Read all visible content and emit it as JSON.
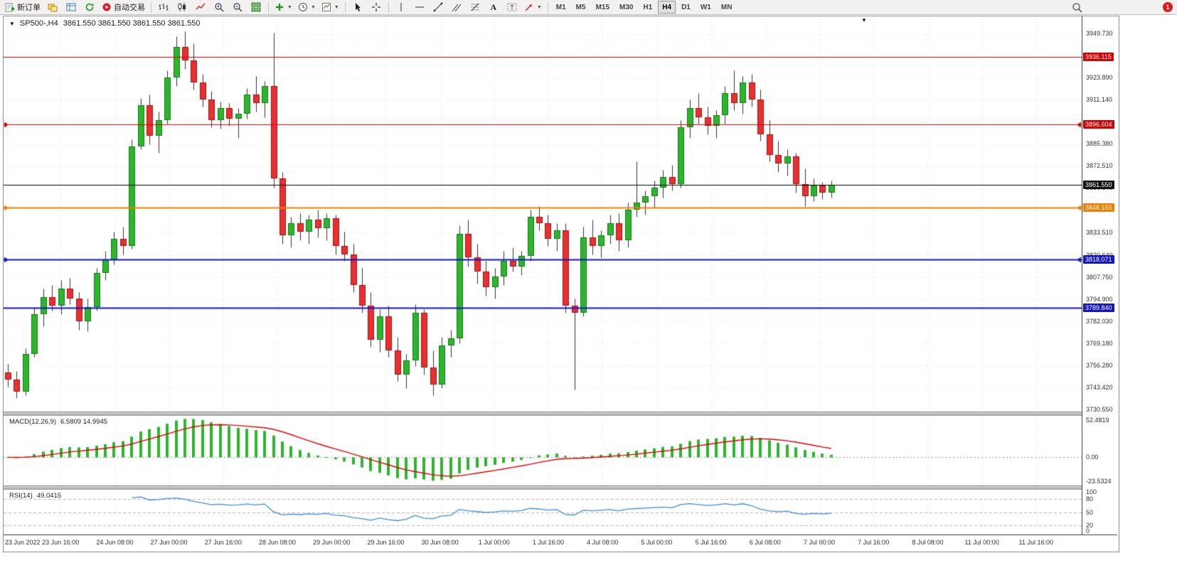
{
  "toolbar": {
    "new_order_label": "新订单",
    "auto_trading_label": "自动交易",
    "timeframes": [
      "M1",
      "M5",
      "M15",
      "M30",
      "H1",
      "H4",
      "D1",
      "W1",
      "MN"
    ],
    "active_timeframe": "H4",
    "notification_count": "1"
  },
  "chart_header": {
    "symbol_period": "SP500-,H4",
    "ohlc": "3861.550 3861.550 3861.550 3861.550"
  },
  "indicators": {
    "macd": {
      "name": "MACD(12,26,9)",
      "values": "6.5809 14.9945",
      "axis": [
        "52.4819",
        "0.00",
        "-23.5324"
      ]
    },
    "rsi": {
      "name": "RSI(14)",
      "value": "49.0415",
      "axis": [
        "100",
        "80",
        "50",
        "20",
        "0"
      ],
      "levels": [
        80,
        50,
        20
      ]
    }
  },
  "price_axis": {
    "ticks": [
      3949.73,
      3923.89,
      3911.14,
      3885.38,
      3872.51,
      3859.64,
      3833.51,
      3820.64,
      3807.75,
      3794.9,
      3782.03,
      3769.18,
      3756.28,
      3743.42,
      3730.55
    ],
    "badges": [
      {
        "label": "3936.115",
        "price": 3936.115,
        "color": "#D40000"
      },
      {
        "label": "3896.604",
        "price": 3896.604,
        "color": "#D40000"
      },
      {
        "label": "3861.550",
        "price": 3861.55,
        "color": "#111111"
      },
      {
        "label": "3848.156",
        "price": 3848.156,
        "color": "#F08000"
      },
      {
        "label": "3818.071",
        "price": 3818.071,
        "color": "#1414C8"
      },
      {
        "label": "3789.840",
        "price": 3789.84,
        "color": "#1414C8"
      }
    ]
  },
  "chart_data": {
    "type": "candlestick",
    "symbol": "SP500-",
    "timeframe": "H4",
    "ylim": [
      3729.3,
      3959.65
    ],
    "grid_base": 3730.55,
    "grid_step": 12.87,
    "current_price": 3861.55,
    "colors": {
      "up": "#2DB52D",
      "up_border": "#157815",
      "down": "#E83030",
      "down_border": "#A01515",
      "wick": "#303030",
      "macd_hist": "#2DB52D",
      "macd_signal": "#E00000",
      "rsi_line": "#3C8CD8"
    },
    "hlines": [
      {
        "price": 3936.115,
        "color": "#D40000",
        "width": 1,
        "ends": false
      },
      {
        "price": 3896.604,
        "color": "#D40000",
        "width": 1,
        "ends": true
      },
      {
        "price": 3848.156,
        "color": "#F08000",
        "width": 2,
        "ends": true
      },
      {
        "price": 3818.071,
        "color": "#1414C8",
        "width": 2,
        "ends": true
      },
      {
        "price": 3789.84,
        "color": "#1414C8",
        "width": 2,
        "ends": false
      }
    ],
    "time_labels": [
      "23 Jun 2022",
      "23 Jun 16:00",
      "24 Jun 08:00",
      "27 Jun 00:00",
      "27 Jun 16:00",
      "28 Jun 08:00",
      "29 Jun 00:00",
      "29 Jun 16:00",
      "30 Jun 08:00",
      "1 Jul 00:00",
      "1 Jul 16:00",
      "4 Jul 08:00",
      "5 Jul 00:00",
      "5 Jul 16:00",
      "6 Jul 08:00",
      "7 Jul 00:00",
      "7 Jul 16:00",
      "8 Jul 08:00",
      "11 Jul 00:00",
      "11 Jul 16:00"
    ],
    "candles": [
      [
        3752,
        3757,
        3744,
        3748
      ],
      [
        3748,
        3753,
        3737,
        3741
      ],
      [
        3741,
        3766,
        3739,
        3763
      ],
      [
        3763,
        3790,
        3761,
        3786
      ],
      [
        3786,
        3801,
        3779,
        3796
      ],
      [
        3796,
        3803,
        3788,
        3791
      ],
      [
        3791,
        3806,
        3786,
        3801
      ],
      [
        3801,
        3807,
        3792,
        3795
      ],
      [
        3795,
        3799,
        3777,
        3782
      ],
      [
        3782,
        3795,
        3776,
        3790
      ],
      [
        3790,
        3813,
        3788,
        3810
      ],
      [
        3810,
        3823,
        3806,
        3818
      ],
      [
        3818,
        3834,
        3815,
        3830
      ],
      [
        3830,
        3837,
        3821,
        3826
      ],
      [
        3826,
        3888,
        3824,
        3884
      ],
      [
        3884,
        3912,
        3882,
        3908
      ],
      [
        3908,
        3914,
        3885,
        3890
      ],
      [
        3890,
        3904,
        3880,
        3899
      ],
      [
        3899,
        3928,
        3897,
        3924
      ],
      [
        3924,
        3948,
        3919,
        3942
      ],
      [
        3942,
        3951,
        3929,
        3934
      ],
      [
        3934,
        3944,
        3917,
        3921
      ],
      [
        3921,
        3926,
        3907,
        3911
      ],
      [
        3911,
        3916,
        3895,
        3899
      ],
      [
        3899,
        3910,
        3894,
        3906
      ],
      [
        3906,
        3909,
        3896,
        3900
      ],
      [
        3900,
        3906,
        3889,
        3903
      ],
      [
        3903,
        3918,
        3900,
        3914
      ],
      [
        3914,
        3925,
        3904,
        3909
      ],
      [
        3909,
        3922,
        3901,
        3919
      ],
      [
        3919,
        3950,
        3860,
        3865
      ],
      [
        3865,
        3869,
        3827,
        3832
      ],
      [
        3832,
        3843,
        3825,
        3839
      ],
      [
        3839,
        3845,
        3829,
        3834
      ],
      [
        3834,
        3844,
        3827,
        3841
      ],
      [
        3841,
        3847,
        3831,
        3836
      ],
      [
        3836,
        3845,
        3829,
        3842
      ],
      [
        3842,
        3844,
        3821,
        3826
      ],
      [
        3826,
        3834,
        3817,
        3821
      ],
      [
        3821,
        3827,
        3799,
        3803
      ],
      [
        3803,
        3813,
        3787,
        3791
      ],
      [
        3791,
        3799,
        3767,
        3771
      ],
      [
        3771,
        3789,
        3764,
        3785
      ],
      [
        3785,
        3791,
        3761,
        3765
      ],
      [
        3765,
        3773,
        3747,
        3751
      ],
      [
        3751,
        3763,
        3743,
        3759
      ],
      [
        3759,
        3792,
        3756,
        3787
      ],
      [
        3787,
        3789,
        3751,
        3755
      ],
      [
        3755,
        3765,
        3739,
        3745
      ],
      [
        3745,
        3773,
        3743,
        3768
      ],
      [
        3768,
        3777,
        3761,
        3772
      ],
      [
        3772,
        3838,
        3769,
        3833
      ],
      [
        3833,
        3841,
        3814,
        3819
      ],
      [
        3819,
        3827,
        3804,
        3811
      ],
      [
        3811,
        3817,
        3797,
        3802
      ],
      [
        3802,
        3813,
        3795,
        3808
      ],
      [
        3808,
        3823,
        3803,
        3817
      ],
      [
        3817,
        3825,
        3811,
        3814
      ],
      [
        3814,
        3823,
        3809,
        3820
      ],
      [
        3820,
        3847,
        3817,
        3843
      ],
      [
        3843,
        3849,
        3835,
        3839
      ],
      [
        3839,
        3844,
        3826,
        3830
      ],
      [
        3830,
        3839,
        3823,
        3835
      ],
      [
        3835,
        3839,
        3787,
        3791
      ],
      [
        3791,
        3795,
        3742,
        3787
      ],
      [
        3787,
        3837,
        3785,
        3831
      ],
      [
        3831,
        3841,
        3821,
        3826
      ],
      [
        3826,
        3835,
        3819,
        3832
      ],
      [
        3832,
        3844,
        3827,
        3839
      ],
      [
        3839,
        3845,
        3823,
        3829
      ],
      [
        3829,
        3851,
        3825,
        3847
      ],
      [
        3847,
        3875,
        3843,
        3851
      ],
      [
        3851,
        3858,
        3844,
        3855
      ],
      [
        3855,
        3864,
        3848,
        3860
      ],
      [
        3860,
        3870,
        3854,
        3866
      ],
      [
        3866,
        3873,
        3858,
        3862
      ],
      [
        3862,
        3899,
        3860,
        3895
      ],
      [
        3895,
        3911,
        3889,
        3906
      ],
      [
        3906,
        3915,
        3897,
        3901
      ],
      [
        3901,
        3907,
        3891,
        3896
      ],
      [
        3896,
        3905,
        3889,
        3902
      ],
      [
        3902,
        3919,
        3897,
        3915
      ],
      [
        3915,
        3928,
        3905,
        3909
      ],
      [
        3909,
        3925,
        3903,
        3921
      ],
      [
        3921,
        3926,
        3907,
        3911
      ],
      [
        3911,
        3917,
        3887,
        3891
      ],
      [
        3891,
        3899,
        3875,
        3879
      ],
      [
        3879,
        3887,
        3869,
        3874
      ],
      [
        3874,
        3882,
        3867,
        3878
      ],
      [
        3878,
        3880,
        3857,
        3862
      ],
      [
        3862,
        3871,
        3849,
        3855
      ],
      [
        3855,
        3865,
        3852,
        3861
      ],
      [
        3861,
        3863,
        3853,
        3857
      ],
      [
        3857,
        3864,
        3854,
        3861.55
      ]
    ]
  }
}
